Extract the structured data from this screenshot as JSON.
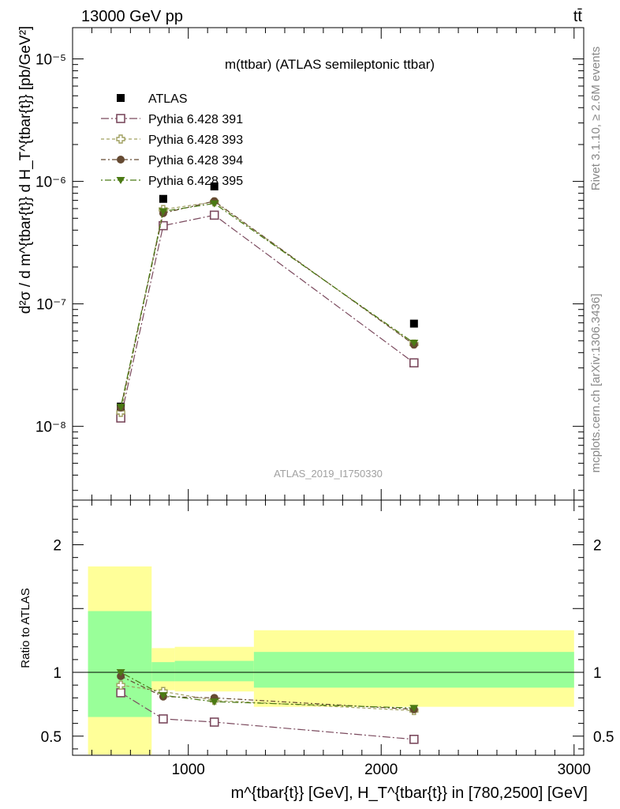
{
  "header": {
    "beam": "13000 GeV pp",
    "process": "tt̄"
  },
  "side_labels": {
    "rivet": "Rivet 3.1.10, ≥ 2.6M events",
    "source": "mcplots.cern.ch [arXiv:1306.3436]"
  },
  "chart_data": [
    {
      "type": "scatter",
      "title": "m(ttbar) (ATLAS semileptonic ttbar)",
      "watermark": "ATLAS_2019_I1750330",
      "ylabel": "d²σ / d m^{tbar{t}} d H_T^{tbar{t}} [pb/GeV²]",
      "yscale": "log",
      "ylim": [
        2.5e-09,
        1.8e-05
      ],
      "xlim": [
        400,
        3050
      ],
      "ytick_labels": [
        "10⁻⁸",
        "10⁻⁷",
        "10⁻⁶",
        "10⁻⁵"
      ],
      "legend_position": "top-left",
      "x": [
        650,
        870,
        1135,
        2170
      ],
      "series": [
        {
          "name": "ATLAS",
          "color": "#000000",
          "marker": "filled-square",
          "values": [
            1.45e-08,
            7.2e-07,
            9.1e-07,
            6.9e-08
          ]
        },
        {
          "name": "Pythia 6.428 391",
          "color": "#7b4a5e",
          "marker": "open-square",
          "values": [
            1.17e-08,
            4.35e-07,
            5.3e-07,
            3.3e-08
          ]
        },
        {
          "name": "Pythia 6.428 393",
          "color": "#a0a060",
          "marker": "open-cross",
          "values": [
            1.3e-08,
            5.9e-07,
            6.8e-07,
            4.7e-08
          ]
        },
        {
          "name": "Pythia 6.428 394",
          "color": "#654a32",
          "marker": "filled-circle",
          "values": [
            1.42e-08,
            5.5e-07,
            6.9e-07,
            4.65e-08
          ]
        },
        {
          "name": "Pythia 6.428 395",
          "color": "#4b7a14",
          "marker": "filled-triangle-down",
          "values": [
            1.44e-08,
            5.7e-07,
            6.6e-07,
            4.8e-08
          ]
        }
      ]
    },
    {
      "type": "scatter",
      "ylabel": "Ratio to ATLAS",
      "xlabel": "m^{tbar{t}} [GeV], H_T^{tbar{t}} in [780,2500] [GeV]",
      "ylim": [
        0.35,
        2.35
      ],
      "xlim": [
        400,
        3050
      ],
      "ytick_labels": [
        "0.5",
        "1",
        "2"
      ],
      "xtick_labels": [
        "1000",
        "2000",
        "3000"
      ],
      "uncertainty_bands": [
        {
          "x": [
            480,
            810
          ],
          "stat": [
            0.65,
            1.48
          ],
          "total": [
            0.3,
            1.83
          ]
        },
        {
          "x": [
            810,
            930
          ],
          "stat": [
            0.93,
            1.08
          ],
          "total": [
            0.86,
            1.19
          ]
        },
        {
          "x": [
            930,
            1340
          ],
          "stat": [
            0.93,
            1.09
          ],
          "total": [
            0.85,
            1.2
          ]
        },
        {
          "x": [
            1340,
            3000
          ],
          "stat": [
            0.88,
            1.16
          ],
          "total": [
            0.73,
            1.33
          ]
        }
      ],
      "x": [
        650,
        870,
        1135,
        2170
      ],
      "series": [
        {
          "name": "Pythia 6.428 391",
          "values": [
            0.84,
            0.635,
            0.61,
            0.475
          ]
        },
        {
          "name": "Pythia 6.428 393",
          "values": [
            0.9,
            0.85,
            0.78,
            0.7
          ]
        },
        {
          "name": "Pythia 6.428 394",
          "values": [
            0.97,
            0.81,
            0.8,
            0.71
          ]
        },
        {
          "name": "Pythia 6.428 395",
          "values": [
            1.0,
            0.82,
            0.77,
            0.72
          ]
        }
      ]
    }
  ]
}
